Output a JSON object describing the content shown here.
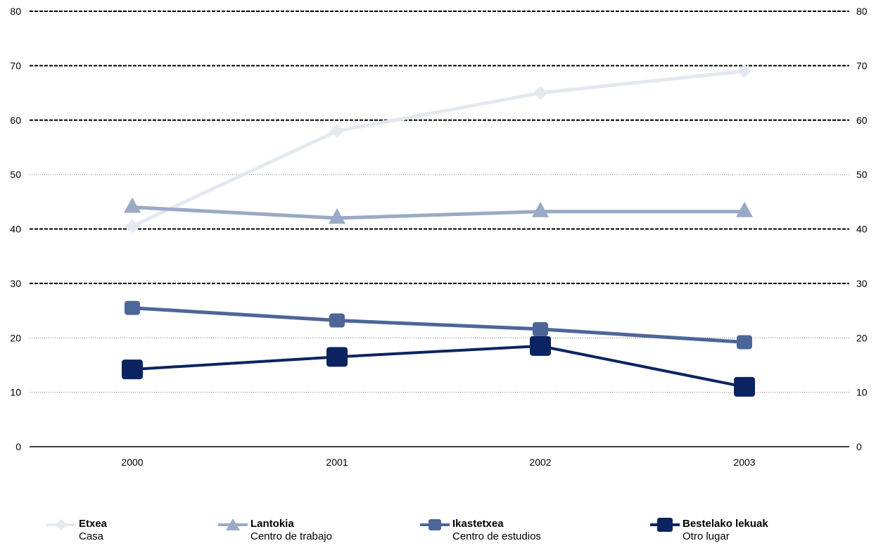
{
  "chart_data": {
    "type": "line",
    "x": [
      "2000",
      "2001",
      "2002",
      "2003"
    ],
    "ylim": [
      0,
      80
    ],
    "yticks": [
      "0",
      "10",
      "20",
      "30",
      "40",
      "50",
      "60",
      "70",
      "80"
    ],
    "grid": true,
    "legend_position": "bottom",
    "series": [
      {
        "name": "Etxea",
        "subname": "Casa",
        "values": [
          40.5,
          58,
          65,
          69
        ],
        "color": "#e4e8ef",
        "marker": "diamond"
      },
      {
        "name": "Lantokia",
        "subname": "Centro de trabajo",
        "values": [
          44,
          42,
          43.2,
          43.2
        ],
        "color": "#9aa9c5",
        "marker": "triangle"
      },
      {
        "name": "Ikastetxea",
        "subname": "Centro de estudios",
        "values": [
          25.5,
          23.2,
          21.6,
          19.2
        ],
        "color": "#4d6698",
        "marker": "square"
      },
      {
        "name": "Bestelako lekuak",
        "subname": "Otro lugar",
        "values": [
          14.2,
          16.5,
          18.5,
          11
        ],
        "color": "#0b2461",
        "marker": "square-large"
      }
    ]
  }
}
